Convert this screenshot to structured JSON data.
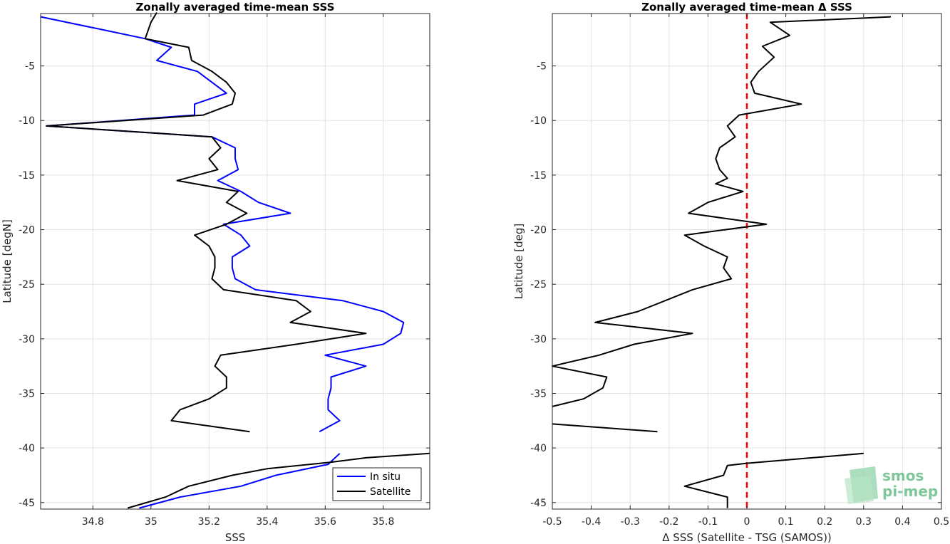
{
  "chart_data": [
    {
      "type": "line",
      "title": "Zonally averaged time-mean SSS",
      "xlabel": "SSS",
      "ylabel": "Latitude [degN]",
      "xlim": [
        34.62,
        35.96
      ],
      "ylim": [
        -45.6,
        -0.2
      ],
      "xticks": [
        34.8,
        35,
        35.2,
        35.4,
        35.6,
        35.8
      ],
      "xtick_labels": [
        "34.8",
        "35",
        "35.2",
        "35.4",
        "35.6",
        "35.8"
      ],
      "yticks": [
        -45,
        -40,
        -35,
        -30,
        -25,
        -20,
        -15,
        -10,
        -5
      ],
      "ytick_labels": [
        "-45",
        "-40",
        "-35",
        "-30",
        "-25",
        "-20",
        "-15",
        "-10",
        "-5"
      ],
      "grid": true,
      "legend_position": "bottom-right",
      "series": [
        {
          "name": "In situ",
          "color": "#0000ff",
          "segments": [
            [
              [
                34.62,
                -0.5
              ],
              [
                34.8,
                -1.5
              ],
              [
                34.98,
                -2.5
              ],
              [
                35.07,
                -3.3
              ],
              [
                35.02,
                -4.5
              ],
              [
                35.16,
                -5.5
              ],
              [
                35.21,
                -6.5
              ],
              [
                35.26,
                -7.5
              ],
              [
                35.15,
                -8.5
              ],
              [
                35.15,
                -9.5
              ],
              [
                34.64,
                -10.5
              ],
              [
                35.21,
                -11.5
              ],
              [
                35.29,
                -12.5
              ],
              [
                35.29,
                -13.5
              ],
              [
                35.3,
                -14.5
              ],
              [
                35.23,
                -15.5
              ],
              [
                35.31,
                -16.5
              ],
              [
                35.37,
                -17.5
              ],
              [
                35.48,
                -18.5
              ],
              [
                35.25,
                -19.5
              ],
              [
                35.31,
                -20.5
              ],
              [
                35.34,
                -21.5
              ],
              [
                35.28,
                -22.5
              ],
              [
                35.28,
                -23.5
              ],
              [
                35.29,
                -24.5
              ],
              [
                35.36,
                -25.5
              ],
              [
                35.66,
                -26.5
              ],
              [
                35.8,
                -27.5
              ],
              [
                35.87,
                -28.5
              ],
              [
                35.86,
                -29.5
              ],
              [
                35.8,
                -30.5
              ],
              [
                35.6,
                -31.5
              ],
              [
                35.74,
                -32.5
              ],
              [
                35.62,
                -33.5
              ],
              [
                35.62,
                -34.5
              ],
              [
                35.61,
                -35.5
              ],
              [
                35.61,
                -36.5
              ],
              [
                35.65,
                -37.5
              ],
              [
                35.58,
                -38.5
              ]
            ],
            [
              [
                35.65,
                -40.5
              ],
              [
                35.61,
                -41.5
              ],
              [
                35.43,
                -42.5
              ],
              [
                35.31,
                -43.5
              ],
              [
                35.1,
                -44.5
              ],
              [
                34.96,
                -45.5
              ]
            ]
          ]
        },
        {
          "name": "Satellite",
          "color": "#000000",
          "segments": [
            [
              [
                35.02,
                -0.1
              ],
              [
                35.0,
                -1.0
              ],
              [
                34.98,
                -2.5
              ],
              [
                35.13,
                -3.3
              ],
              [
                35.14,
                -4.5
              ],
              [
                35.21,
                -5.5
              ],
              [
                35.26,
                -6.5
              ],
              [
                35.29,
                -7.5
              ],
              [
                35.28,
                -8.5
              ],
              [
                35.18,
                -9.5
              ],
              [
                34.64,
                -10.5
              ],
              [
                35.21,
                -11.5
              ],
              [
                35.24,
                -12.5
              ],
              [
                35.2,
                -13.5
              ],
              [
                35.23,
                -14.5
              ],
              [
                35.09,
                -15.5
              ],
              [
                35.3,
                -16.5
              ],
              [
                35.26,
                -17.5
              ],
              [
                35.33,
                -18.5
              ],
              [
                35.26,
                -19.5
              ],
              [
                35.15,
                -20.5
              ],
              [
                35.2,
                -21.5
              ],
              [
                35.22,
                -22.5
              ],
              [
                35.22,
                -23.5
              ],
              [
                35.21,
                -24.5
              ],
              [
                35.25,
                -25.5
              ],
              [
                35.5,
                -26.5
              ],
              [
                35.55,
                -27.5
              ],
              [
                35.48,
                -28.5
              ],
              [
                35.74,
                -29.5
              ],
              [
                35.5,
                -30.5
              ],
              [
                35.24,
                -31.5
              ],
              [
                35.22,
                -32.5
              ],
              [
                35.26,
                -33.5
              ],
              [
                35.26,
                -34.5
              ],
              [
                35.2,
                -35.5
              ],
              [
                35.1,
                -36.5
              ],
              [
                35.07,
                -37.5
              ],
              [
                35.34,
                -38.5
              ]
            ],
            [
              [
                35.96,
                -40.5
              ],
              [
                35.74,
                -40.9
              ],
              [
                35.62,
                -41.3
              ],
              [
                35.4,
                -41.9
              ],
              [
                35.28,
                -42.5
              ],
              [
                35.13,
                -43.5
              ],
              [
                35.05,
                -44.5
              ],
              [
                34.92,
                -45.5
              ]
            ]
          ]
        }
      ]
    },
    {
      "type": "line",
      "title": "Zonally averaged time-mean Δ SSS",
      "xlabel": "Δ SSS (Satellite - TSG (SAMOS))",
      "ylabel": "Latitude [deg]",
      "xlim": [
        -0.5,
        0.5
      ],
      "ylim": [
        -45.6,
        -0.2
      ],
      "xticks": [
        -0.5,
        -0.4,
        -0.3,
        -0.2,
        -0.1,
        0,
        0.1,
        0.2,
        0.3,
        0.4,
        0.5
      ],
      "xtick_labels": [
        "-0.5",
        "-0.4",
        "-0.3",
        "-0.2",
        "-0.1",
        "0",
        "0.1",
        "0.2",
        "0.3",
        "0.4",
        "0.5"
      ],
      "yticks": [
        -45,
        -40,
        -35,
        -30,
        -25,
        -20,
        -15,
        -10,
        -5
      ],
      "ytick_labels": [
        "-45",
        "-40",
        "-35",
        "-30",
        "-25",
        "-20",
        "-15",
        "-10",
        "-5"
      ],
      "grid": true,
      "reference_line": {
        "x": 0,
        "color": "#ff0000",
        "style": "dashed"
      },
      "series": [
        {
          "color": "#000000",
          "segments": [
            [
              [
                0.37,
                -0.5
              ],
              [
                0.06,
                -1.0
              ],
              [
                0.11,
                -2.2
              ],
              [
                0.04,
                -3.2
              ],
              [
                0.07,
                -4.2
              ],
              [
                0.03,
                -5.5
              ],
              [
                0.01,
                -6.5
              ],
              [
                0.02,
                -7.5
              ],
              [
                0.14,
                -8.5
              ],
              [
                -0.02,
                -9.5
              ],
              [
                -0.05,
                -10.5
              ],
              [
                -0.03,
                -11.5
              ],
              [
                -0.07,
                -12.5
              ],
              [
                -0.08,
                -13.5
              ],
              [
                -0.07,
                -14.5
              ],
              [
                -0.05,
                -15.3
              ],
              [
                -0.08,
                -15.8
              ],
              [
                -0.01,
                -16.5
              ],
              [
                -0.1,
                -17.5
              ],
              [
                -0.15,
                -18.5
              ],
              [
                0.05,
                -19.5
              ],
              [
                -0.16,
                -20.5
              ],
              [
                -0.11,
                -21.5
              ],
              [
                -0.05,
                -22.5
              ],
              [
                -0.06,
                -23.5
              ],
              [
                -0.04,
                -24.5
              ],
              [
                -0.14,
                -25.5
              ],
              [
                -0.28,
                -27.5
              ],
              [
                -0.39,
                -28.5
              ],
              [
                -0.14,
                -29.5
              ],
              [
                -0.29,
                -30.5
              ],
              [
                -0.38,
                -31.5
              ],
              [
                -0.5,
                -32.5
              ],
              [
                -0.36,
                -33.5
              ],
              [
                -0.37,
                -34.5
              ],
              [
                -0.42,
                -35.5
              ],
              [
                -0.5,
                -36.2
              ]
            ],
            [
              [
                -0.5,
                -37.8
              ],
              [
                -0.23,
                -38.5
              ]
            ],
            [
              [
                0.3,
                -40.5
              ],
              [
                0.0,
                -41.4
              ],
              [
                -0.05,
                -41.6
              ],
              [
                -0.06,
                -42.5
              ],
              [
                -0.16,
                -43.5
              ],
              [
                -0.05,
                -44.5
              ],
              [
                -0.05,
                -45.5
              ]
            ]
          ]
        }
      ]
    }
  ],
  "legend": {
    "items": [
      "In situ",
      "Satellite"
    ]
  },
  "logo": {
    "line1": "smos",
    "line2": "pi-mep"
  }
}
